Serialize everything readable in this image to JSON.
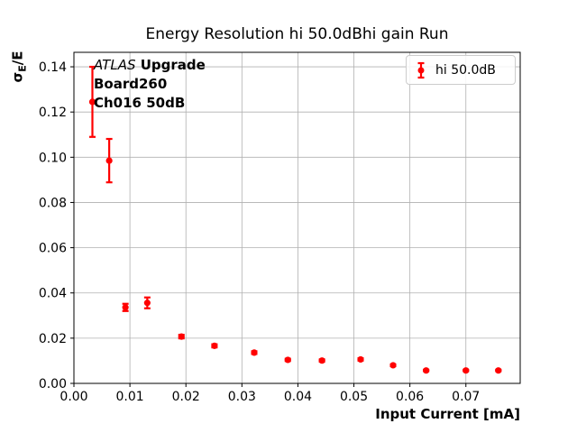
{
  "chart_data": {
    "type": "scatter",
    "title": "Energy Resolution hi 50.0dBhi gain Run",
    "xlabel": "Input Current [mA]",
    "ylabel": {
      "base": "σ",
      "sub": "E",
      "suffix": "/E"
    },
    "annotation": {
      "experiment": "ATLAS",
      "label": "Upgrade",
      "board": "Board260",
      "channel": "Ch016 50dB"
    },
    "legend": {
      "label": "hi 50.0dB",
      "position": "upper right"
    },
    "grid": true,
    "xlim": [
      0,
      0.0797
    ],
    "ylim": [
      0,
      0.1464
    ],
    "xticks": [
      {
        "v": 0.0,
        "label": "0.00"
      },
      {
        "v": 0.01,
        "label": "0.01"
      },
      {
        "v": 0.02,
        "label": "0.02"
      },
      {
        "v": 0.03,
        "label": "0.03"
      },
      {
        "v": 0.04,
        "label": "0.04"
      },
      {
        "v": 0.05,
        "label": "0.05"
      },
      {
        "v": 0.06,
        "label": "0.06"
      },
      {
        "v": 0.07,
        "label": "0.07"
      }
    ],
    "yticks": [
      {
        "v": 0.0,
        "label": "0.00"
      },
      {
        "v": 0.02,
        "label": "0.02"
      },
      {
        "v": 0.04,
        "label": "0.04"
      },
      {
        "v": 0.06,
        "label": "0.06"
      },
      {
        "v": 0.08,
        "label": "0.08"
      },
      {
        "v": 0.1,
        "label": "0.10"
      },
      {
        "v": 0.12,
        "label": "0.12"
      },
      {
        "v": 0.14,
        "label": "0.14"
      }
    ],
    "series": [
      {
        "name": "hi 50.0dB",
        "color": "#ff0000",
        "points": [
          {
            "x": 0.0033,
            "y": 0.1245,
            "yerr": 0.0155
          },
          {
            "x": 0.0063,
            "y": 0.0985,
            "yerr": 0.0096
          },
          {
            "x": 0.0092,
            "y": 0.0336,
            "yerr": 0.0016
          },
          {
            "x": 0.0131,
            "y": 0.0356,
            "yerr": 0.0024
          },
          {
            "x": 0.0192,
            "y": 0.0207,
            "yerr": 0.0008
          },
          {
            "x": 0.0251,
            "y": 0.0166,
            "yerr": 0.0007
          },
          {
            "x": 0.0322,
            "y": 0.0136,
            "yerr": 0.0006
          },
          {
            "x": 0.0382,
            "y": 0.0104,
            "yerr": 0.0005
          },
          {
            "x": 0.0443,
            "y": 0.0101,
            "yerr": 0.0005
          },
          {
            "x": 0.0512,
            "y": 0.0106,
            "yerr": 0.0005
          },
          {
            "x": 0.057,
            "y": 0.008,
            "yerr": 0.0004
          },
          {
            "x": 0.0629,
            "y": 0.0057,
            "yerr": 0.0003
          },
          {
            "x": 0.07,
            "y": 0.0057,
            "yerr": 0.0003
          },
          {
            "x": 0.0758,
            "y": 0.0057,
            "yerr": 0.0003
          }
        ]
      }
    ],
    "colors": {
      "grid": "#b0b0b0",
      "spine": "#000000",
      "text": "#000000",
      "legend_border": "#cccccc",
      "background": "#ffffff"
    }
  }
}
